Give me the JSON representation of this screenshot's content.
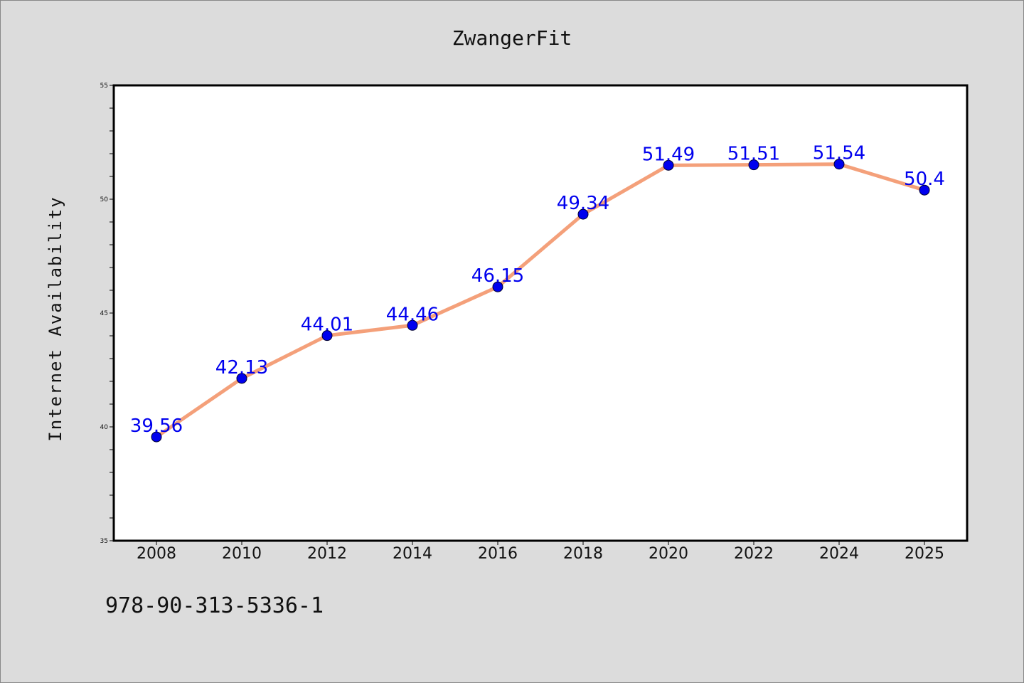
{
  "chart_data": {
    "type": "line",
    "title": "ZwangerFit",
    "xlabel": "",
    "ylabel": "Internet Availability",
    "categories": [
      "2008",
      "2010",
      "2012",
      "2014",
      "2016",
      "2018",
      "2020",
      "2022",
      "2024",
      "2025"
    ],
    "values": [
      39.56,
      42.13,
      44.01,
      44.46,
      46.15,
      49.34,
      51.49,
      51.51,
      51.54,
      50.4
    ],
    "data_labels": [
      "39.56",
      "42.13",
      "44.01",
      "44.46",
      "46.15",
      "49.34",
      "51.49",
      "51.51",
      "51.54",
      "50.4"
    ],
    "ylim": [
      35,
      55
    ],
    "yticks": [
      "35",
      "40",
      "45",
      "50",
      "55"
    ],
    "grid": false,
    "colors": {
      "line": "#f4a07a",
      "marker": "#0000ee",
      "label": "#0000ee",
      "plot_bg": "#ffffff",
      "page_bg": "#dcdcdc"
    }
  },
  "footer_text": "978-90-313-5336-1"
}
